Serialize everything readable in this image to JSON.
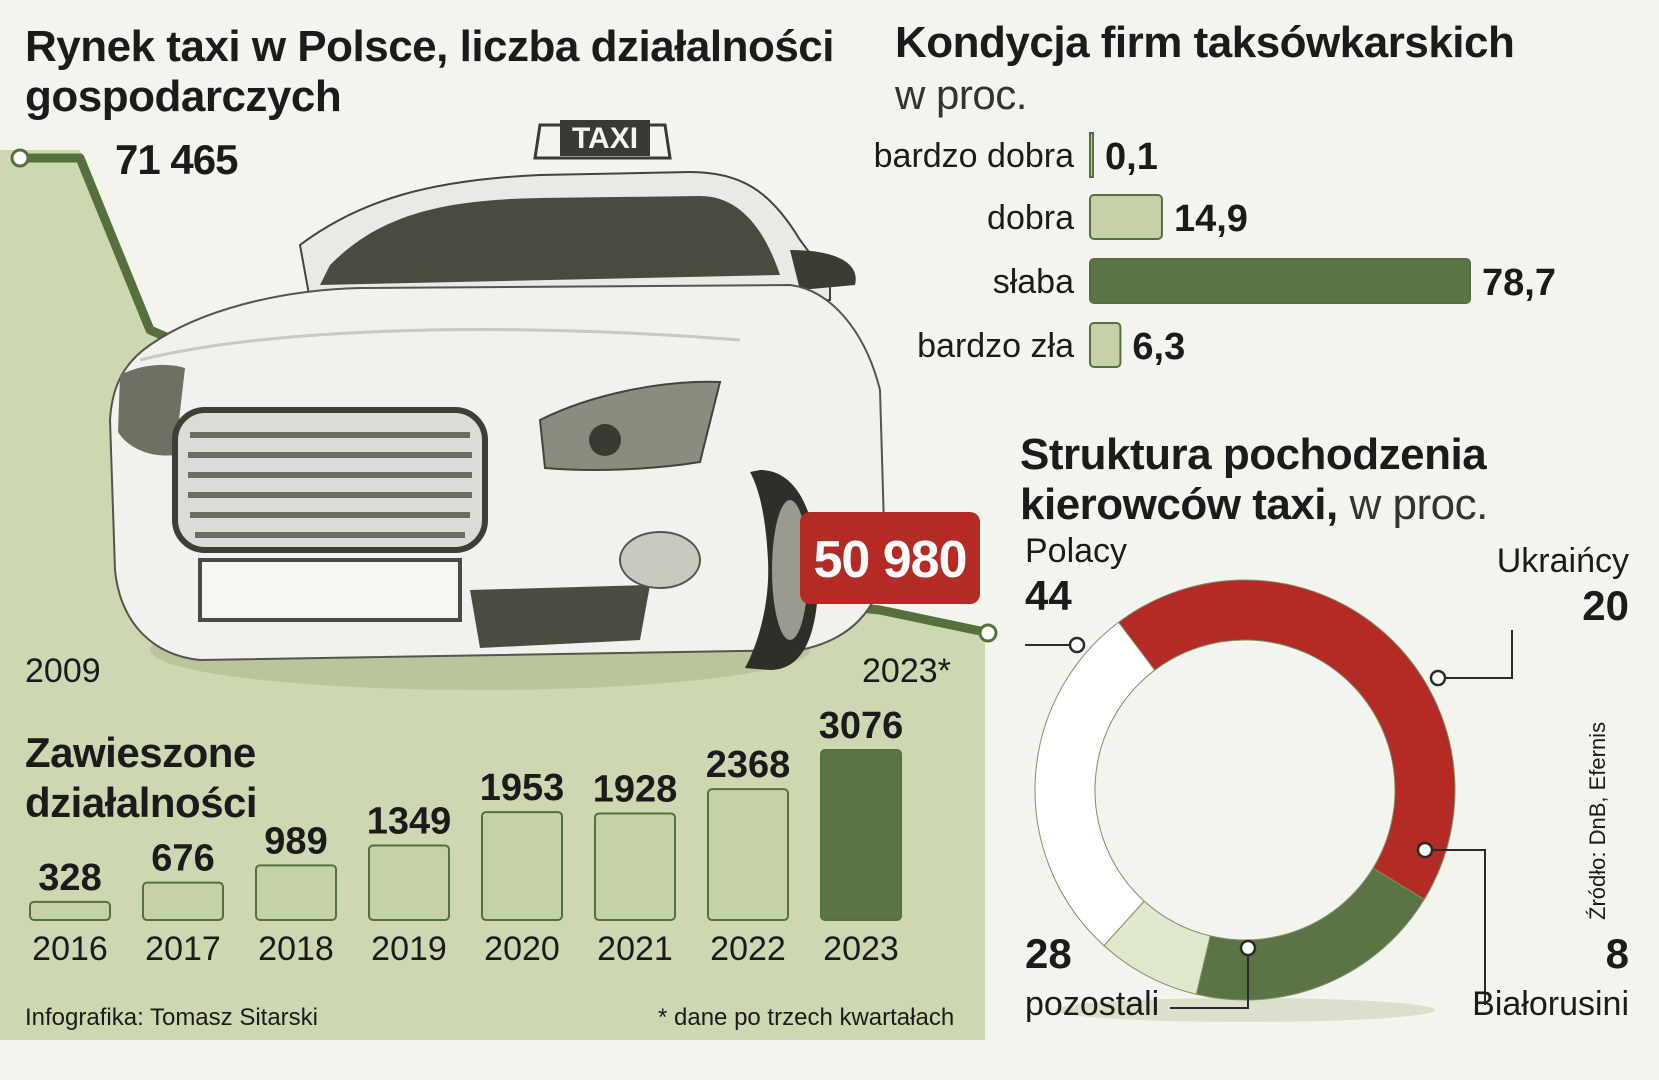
{
  "colors": {
    "background": "#f4f4ee",
    "light_green": "#c5d2a7",
    "pale_green": "#dfe7cc",
    "dark_green": "#5a7446",
    "line_green": "#53703d",
    "red": "#b42a25",
    "text": "#1b1b1b"
  },
  "left_panel": {
    "title": "Rynek taxi w Polsce, liczba działalności gospodarczych",
    "taxi_sign": "TAXI",
    "start_year": "2009",
    "end_year": "2023*",
    "footnote": "* dane po trzech kwartałach",
    "credit": "Infografika: Tomasz Sitarski"
  },
  "right_panel": {
    "condition_title": "Kondycja firm taksówkarskich",
    "condition_unit": "w proc.",
    "origin_title_bold": "Struktura pochodzenia kierowców taxi,",
    "origin_unit": "w proc.",
    "source": "Źródło: DnB, Efernis"
  },
  "chart_data": [
    {
      "type": "line",
      "title": "Rynek taxi w Polsce, liczba działalności gospodarczych",
      "x": [
        "2009",
        "2023*"
      ],
      "values": [
        71465,
        50980
      ],
      "value_labels": [
        "71 465",
        "50 980"
      ]
    },
    {
      "type": "bar",
      "title": "Zawieszone działalności",
      "categories": [
        "2016",
        "2017",
        "2018",
        "2019",
        "2020",
        "2021",
        "2022",
        "2023"
      ],
      "values": [
        328,
        676,
        989,
        1349,
        1953,
        1928,
        2368,
        3076
      ]
    },
    {
      "type": "bar",
      "orientation": "horizontal",
      "title": "Kondycja firm taksówkarskich",
      "unit": "w proc.",
      "categories": [
        "bardzo dobra",
        "dobra",
        "słaba",
        "bardzo zła"
      ],
      "values": [
        0.1,
        14.9,
        78.7,
        6.3
      ],
      "value_labels": [
        "0,1",
        "14,9",
        "78,7",
        "6,3"
      ]
    },
    {
      "type": "pie",
      "title": "Struktura pochodzenia kierowców taxi",
      "unit": "w proc.",
      "categories": [
        "Polacy",
        "Ukraińcy",
        "Białorusini",
        "pozostali"
      ],
      "values": [
        44,
        20,
        8,
        28
      ],
      "colors": [
        "#b42a25",
        "#5a7446",
        "#dfe7cc",
        "#ffffff"
      ]
    }
  ]
}
